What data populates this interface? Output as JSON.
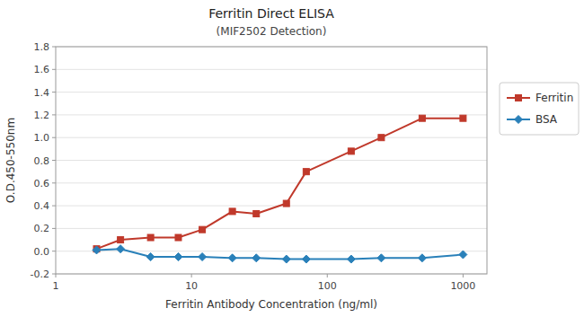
{
  "chart_data": {
    "type": "line",
    "title": "Ferritin Direct ELISA",
    "subtitle": "(MIF2502 Detection)",
    "x_label": "Ferritin Antibody Concentration (ng/ml)",
    "y_label": "O.D.450-550nm",
    "x": [
      2,
      3,
      5,
      8,
      12,
      20,
      30,
      50,
      70,
      150,
      250,
      500,
      1000
    ],
    "series": [
      {
        "name": "Ferritin",
        "color": "#C0392B",
        "marker": "square",
        "values": [
          0.02,
          0.1,
          0.12,
          0.12,
          0.19,
          0.35,
          0.33,
          0.42,
          0.7,
          0.88,
          1.0,
          1.17,
          1.17
        ]
      },
      {
        "name": "BSA",
        "color": "#2980B9",
        "marker": "diamond",
        "values": [
          0.01,
          0.02,
          -0.05,
          -0.05,
          -0.05,
          -0.06,
          -0.06,
          -0.07,
          -0.07,
          -0.07,
          -0.06,
          -0.06,
          -0.03
        ]
      }
    ],
    "log": "x",
    "xlim": [
      1,
      1500
    ],
    "xticks": [
      1,
      10,
      100,
      1000
    ],
    "ylim": [
      -0.2,
      1.8
    ],
    "yticks": [
      -0.2,
      {
        "value": 0.0,
        "label": "0.0"
      },
      0.2,
      0.4,
      0.6,
      0.8,
      {
        "value": 1.0,
        "label": "1.0"
      },
      1.2,
      1.4,
      1.6,
      1.8
    ],
    "grid": true,
    "legend": "right"
  }
}
